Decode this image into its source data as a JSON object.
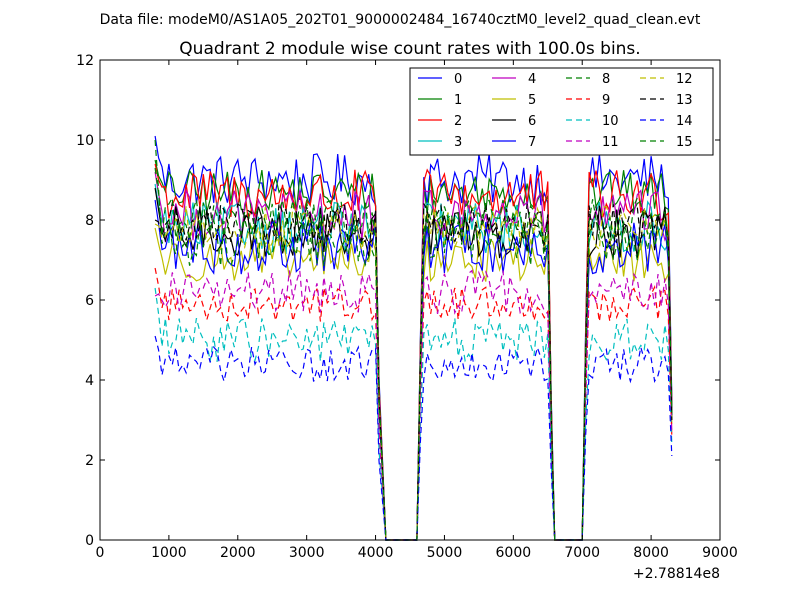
{
  "chart_data": {
    "type": "line",
    "suptitle": "Data file: modeM0/AS1A05_202T01_9000002484_16740cztM0_level2_quad_clean.evt",
    "title": "Quadrant 2 module wise count rates with 100.0s bins.",
    "xlabel": "",
    "ylabel": "",
    "x_offset_label": "+2.78814e8",
    "xlim": [
      0,
      9000
    ],
    "ylim": [
      0,
      12
    ],
    "xticks": [
      0,
      1000,
      2000,
      3000,
      4000,
      5000,
      6000,
      7000,
      8000,
      9000
    ],
    "yticks": [
      0,
      2,
      4,
      6,
      8,
      10,
      12
    ],
    "x_tick_labels": [
      "0",
      "1000",
      "2000",
      "3000",
      "4000",
      "5000",
      "6000",
      "7000",
      "8000",
      "9000"
    ],
    "y_tick_labels": [
      "0",
      "2",
      "4",
      "6",
      "8",
      "10",
      "12"
    ],
    "grid": false,
    "legend_position": "top-right",
    "segments": [
      {
        "start": 800,
        "end": 4000
      },
      {
        "start": 4700,
        "end": 6500
      },
      {
        "start": 7100,
        "end": 8200
      }
    ],
    "drop_points": [
      4150,
      4200,
      4600,
      4650,
      6600,
      7000
    ],
    "tail_x": 8300,
    "series": [
      {
        "name": "0",
        "color": "#0000ff",
        "style": "solid",
        "level": 9.0,
        "variation": 0.3,
        "start_value": 10.1,
        "tail_value": 3.5
      },
      {
        "name": "1",
        "color": "#008000",
        "style": "solid",
        "level": 8.7,
        "variation": 0.25,
        "start_value": 9.5,
        "tail_value": 3.4
      },
      {
        "name": "2",
        "color": "#ff0000",
        "style": "solid",
        "level": 8.6,
        "variation": 0.3,
        "start_value": 9.4,
        "tail_value": 3.3
      },
      {
        "name": "3",
        "color": "#00bfbf",
        "style": "solid",
        "level": 7.8,
        "variation": 0.3,
        "start_value": 8.9,
        "tail_value": 3.1
      },
      {
        "name": "4",
        "color": "#bf00bf",
        "style": "solid",
        "level": 8.1,
        "variation": 0.3,
        "start_value": 9.2,
        "tail_value": 3.3
      },
      {
        "name": "5",
        "color": "#bfbf00",
        "style": "solid",
        "level": 7.0,
        "variation": 0.25,
        "start_value": 7.8,
        "tail_value": 2.9
      },
      {
        "name": "6",
        "color": "#000000",
        "style": "solid",
        "level": 7.7,
        "variation": 0.3,
        "start_value": 8.8,
        "tail_value": 3.1
      },
      {
        "name": "7",
        "color": "#0000ff",
        "style": "solid",
        "level": 7.3,
        "variation": 0.3,
        "start_value": 8.5,
        "tail_value": 3.0
      },
      {
        "name": "8",
        "color": "#008000",
        "style": "dashed",
        "level": 7.5,
        "variation": 0.3,
        "start_value": 10.0,
        "tail_value": 3.1
      },
      {
        "name": "9",
        "color": "#ff0000",
        "style": "dashed",
        "level": 5.9,
        "variation": 0.2,
        "start_value": 6.8,
        "tail_value": 2.6
      },
      {
        "name": "10",
        "color": "#00bfbf",
        "style": "dashed",
        "level": 5.0,
        "variation": 0.25,
        "start_value": 6.3,
        "tail_value": 2.4
      },
      {
        "name": "11",
        "color": "#bf00bf",
        "style": "dashed",
        "level": 6.2,
        "variation": 0.25,
        "start_value": 6.1,
        "tail_value": 2.7
      },
      {
        "name": "12",
        "color": "#bfbf00",
        "style": "dashed",
        "level": 7.8,
        "variation": 0.25,
        "start_value": 7.9,
        "tail_value": 3.0
      },
      {
        "name": "13",
        "color": "#000000",
        "style": "dashed",
        "level": 7.9,
        "variation": 0.25,
        "start_value": 8.0,
        "tail_value": 3.0
      },
      {
        "name": "14",
        "color": "#0000ff",
        "style": "dashed",
        "level": 4.4,
        "variation": 0.2,
        "start_value": 5.1,
        "tail_value": 2.1
      },
      {
        "name": "15",
        "color": "#008000",
        "style": "dashed",
        "level": 8.0,
        "variation": 0.25,
        "start_value": 9.3,
        "tail_value": 3.2
      }
    ]
  }
}
